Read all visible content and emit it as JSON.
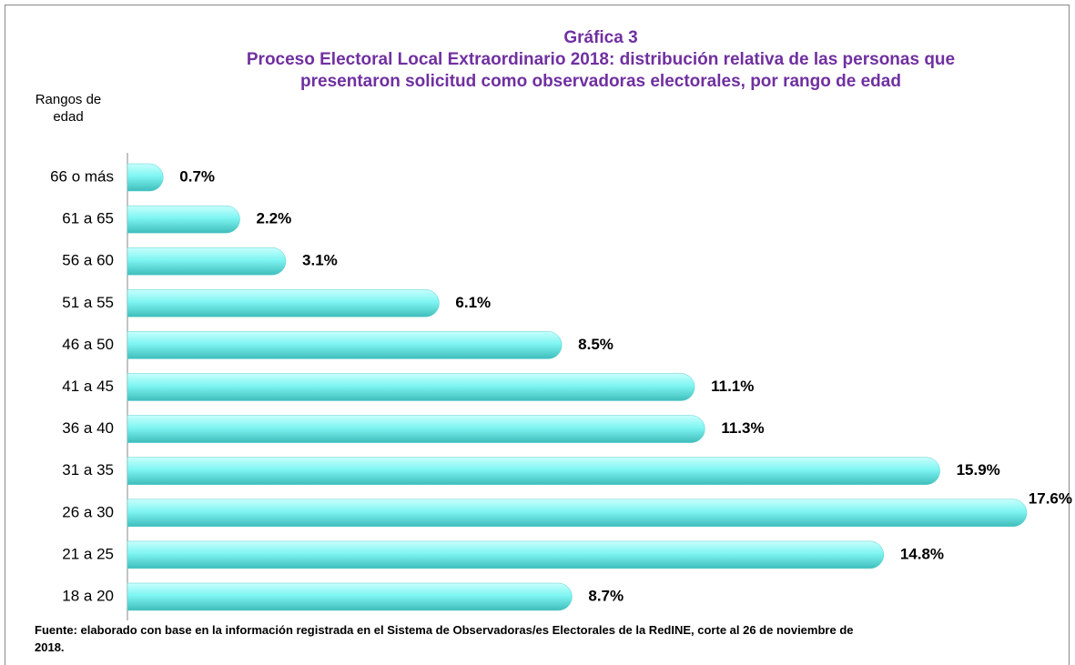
{
  "chart_data": {
    "type": "bar",
    "orientation": "horizontal",
    "title": "Gráfica 3",
    "subtitle": "Proceso Electoral Local Extraordinario 2018: distribución relativa de las personas que presentaron solicitud como observadoras electorales, por rango de edad",
    "y_label": "Rangos de edad",
    "categories": [
      "66 o más",
      "61 a 65",
      "56 a 60",
      "51 a 55",
      "46 a 50",
      "41 a 45",
      "36 a 40",
      "31 a 35",
      "26 a 30",
      "21 a 25",
      "18 a 20"
    ],
    "values": [
      0.7,
      2.2,
      3.1,
      6.1,
      8.5,
      11.1,
      11.3,
      15.9,
      17.6,
      14.8,
      8.7
    ],
    "value_labels": [
      "0.7%",
      "2.2%",
      "3.1%",
      "6.1%",
      "8.5%",
      "11.1%",
      "11.3%",
      "15.9%",
      "17.6%",
      "14.8%",
      "8.7%"
    ],
    "color": "#7ff5f2",
    "source": "Fuente:  elaborado con base en la información registrada en el Sistema de Observadoras/es Electorales de la RedINE, corte al 26 de noviembre de 2018."
  }
}
